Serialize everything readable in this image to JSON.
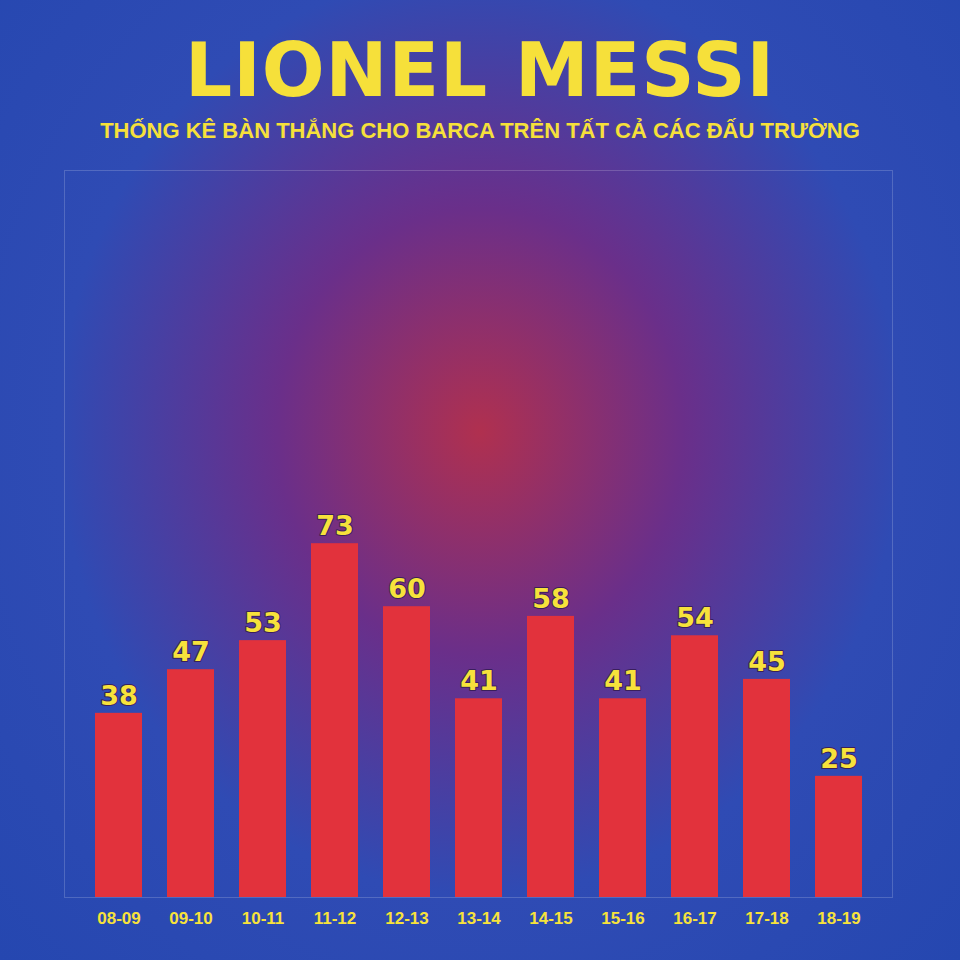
{
  "chart_data": {
    "type": "bar",
    "title": "LIONEL MESSI",
    "subtitle": "THỐNG KÊ BÀN THẮNG CHO BARCA TRÊN TẤT CẢ CÁC ĐẤU TRƯỜNG",
    "categories": [
      "08-09",
      "09-10",
      "10-11",
      "11-12",
      "12-13",
      "13-14",
      "14-15",
      "15-16",
      "16-17",
      "17-18",
      "18-19"
    ],
    "values": [
      38,
      47,
      53,
      73,
      60,
      41,
      58,
      41,
      54,
      45,
      25
    ],
    "color": "#e2323c",
    "ylim": [
      0,
      150
    ],
    "data_labels": true,
    "tick_labels": "x"
  }
}
